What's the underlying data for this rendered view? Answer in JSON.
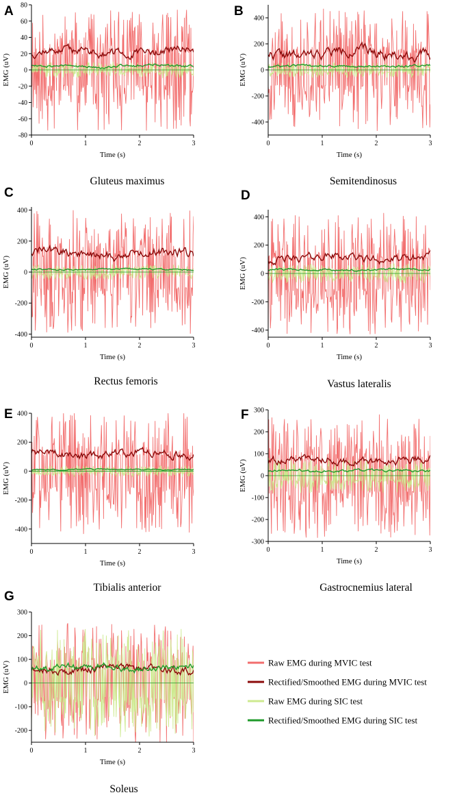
{
  "colors": {
    "raw_mvic": "#f26d6d",
    "smooth_mvic": "#8b0a0a",
    "raw_sic": "#cdea8f",
    "smooth_sic": "#1f9a2a",
    "axis": "#000000"
  },
  "legend": {
    "items": [
      {
        "label": "Raw EMG during MVIC test",
        "color": "#f26d6d"
      },
      {
        "label": "Rectified/Smoothed EMG during MVIC test",
        "color": "#8b0a0a"
      },
      {
        "label": "Raw EMG during SIC test",
        "color": "#cdea8f"
      },
      {
        "label": "Rectified/Smoothed EMG during SIC test",
        "color": "#1f9a2a"
      }
    ]
  },
  "chart_data": [
    {
      "panel": "A",
      "type": "line",
      "muscle": "Gluteus maximus",
      "xlabel": "Time (s)",
      "ylabel": "EMG (uV)",
      "xlim": [
        0,
        3
      ],
      "xticks": [
        0,
        1,
        2,
        3
      ],
      "ylim": [
        -80,
        80
      ],
      "yticks": [
        -80,
        -60,
        -40,
        -20,
        0,
        20,
        40,
        60,
        80
      ],
      "series": [
        {
          "name": "Raw EMG during MVIC test",
          "amplitude": 75,
          "seed": 11
        },
        {
          "name": "Rectified/Smoothed EMG during MVIC test",
          "mean": 22,
          "variation": 6,
          "seed": 12
        },
        {
          "name": "Raw EMG during SIC test",
          "amplitude": 10,
          "seed": 13
        },
        {
          "name": "Rectified/Smoothed EMG during SIC test",
          "mean": 5,
          "variation": 2,
          "seed": 14
        }
      ]
    },
    {
      "panel": "B",
      "type": "line",
      "muscle": "Semitendinosus",
      "xlabel": "Time (s)",
      "ylabel": "EMG (uV)",
      "xlim": [
        0,
        3
      ],
      "xticks": [
        0,
        1,
        2,
        3
      ],
      "ylim": [
        -500,
        500
      ],
      "yticks": [
        -400,
        -200,
        0,
        200,
        400
      ],
      "series": [
        {
          "name": "Raw EMG during MVIC test",
          "amplitude": 470,
          "seed": 21
        },
        {
          "name": "Rectified/Smoothed EMG during MVIC test",
          "mean": 130,
          "variation": 45,
          "seed": 22
        },
        {
          "name": "Raw EMG during SIC test",
          "amplitude": 60,
          "seed": 23
        },
        {
          "name": "Rectified/Smoothed EMG during SIC test",
          "mean": 30,
          "variation": 10,
          "seed": 24
        }
      ]
    },
    {
      "panel": "C",
      "type": "line",
      "muscle": "Rectus femoris",
      "xlabel": "Time (s)",
      "ylabel": "EMG (uV)",
      "xlim": [
        0,
        3
      ],
      "xticks": [
        0,
        1,
        2,
        3
      ],
      "ylim": [
        -420,
        420
      ],
      "yticks": [
        -400,
        -200,
        0,
        200,
        400
      ],
      "series": [
        {
          "name": "Raw EMG during MVIC test",
          "amplitude": 400,
          "seed": 31
        },
        {
          "name": "Rectified/Smoothed EMG during MVIC test",
          "mean": 120,
          "variation": 35,
          "seed": 32
        },
        {
          "name": "Raw EMG during SIC test",
          "amplitude": 50,
          "seed": 33
        },
        {
          "name": "Rectified/Smoothed EMG during SIC test",
          "mean": 18,
          "variation": 6,
          "seed": 34
        }
      ]
    },
    {
      "panel": "D",
      "type": "line",
      "muscle": "Vastus lateralis",
      "xlabel": "Time (s)",
      "ylabel": "EMG (uV)",
      "xlim": [
        0,
        3
      ],
      "xticks": [
        0,
        1,
        2,
        3
      ],
      "ylim": [
        -450,
        450
      ],
      "yticks": [
        -400,
        -200,
        0,
        200,
        400
      ],
      "series": [
        {
          "name": "Raw EMG during MVIC test",
          "amplitude": 430,
          "seed": 41
        },
        {
          "name": "Rectified/Smoothed EMG during MVIC test",
          "mean": 110,
          "variation": 30,
          "seed": 42
        },
        {
          "name": "Raw EMG during SIC test",
          "amplitude": 70,
          "seed": 43
        },
        {
          "name": "Rectified/Smoothed EMG during SIC test",
          "mean": 25,
          "variation": 8,
          "seed": 44
        }
      ]
    },
    {
      "panel": "E",
      "type": "line",
      "muscle": "Tibialis anterior",
      "xlabel": "Time (s)",
      "ylabel": "EMG (uV)",
      "xlim": [
        0,
        3
      ],
      "xticks": [
        0,
        1,
        2,
        3
      ],
      "ylim": [
        -500,
        400
      ],
      "yticks": [
        -400,
        -200,
        0,
        200,
        400
      ],
      "series": [
        {
          "name": "Raw EMG during MVIC test",
          "amplitude": 440,
          "seed": 51
        },
        {
          "name": "Rectified/Smoothed EMG during MVIC test",
          "mean": 120,
          "variation": 30,
          "seed": 52
        },
        {
          "name": "Raw EMG during SIC test",
          "amplitude": 40,
          "seed": 53
        },
        {
          "name": "Rectified/Smoothed EMG during SIC test",
          "mean": 12,
          "variation": 5,
          "seed": 54
        }
      ]
    },
    {
      "panel": "F",
      "type": "line",
      "muscle": "Gastrocnemius lateral",
      "xlabel": "Time (s)",
      "ylabel": "EMG (uV)",
      "xlim": [
        0,
        3
      ],
      "xticks": [
        0,
        1,
        2,
        3
      ],
      "ylim": [
        -300,
        300
      ],
      "yticks": [
        -300,
        -200,
        -100,
        0,
        100,
        200,
        300
      ],
      "series": [
        {
          "name": "Raw EMG during MVIC test",
          "amplitude": 290,
          "seed": 61
        },
        {
          "name": "Rectified/Smoothed EMG during MVIC test",
          "mean": 70,
          "variation": 20,
          "seed": 62
        },
        {
          "name": "Raw EMG during SIC test",
          "amplitude": 80,
          "seed": 63
        },
        {
          "name": "Rectified/Smoothed EMG during SIC test",
          "mean": 22,
          "variation": 6,
          "seed": 64
        }
      ]
    },
    {
      "panel": "G",
      "type": "line",
      "muscle": "Soleus",
      "xlabel": "Time (s)",
      "ylabel": "EMG (uV)",
      "xlim": [
        0,
        3
      ],
      "xticks": [
        0,
        1,
        2,
        3
      ],
      "ylim": [
        -250,
        300
      ],
      "yticks": [
        -200,
        -100,
        0,
        100,
        200,
        300
      ],
      "series": [
        {
          "name": "Raw EMG during MVIC test",
          "amplitude": 260,
          "seed": 71
        },
        {
          "name": "Rectified/Smoothed EMG during MVIC test",
          "mean": 60,
          "variation": 18,
          "seed": 72
        },
        {
          "name": "Raw EMG during SIC test",
          "amplitude": 230,
          "seed": 73
        },
        {
          "name": "Rectified/Smoothed EMG during SIC test",
          "mean": 65,
          "variation": 15,
          "seed": 74
        }
      ]
    }
  ]
}
